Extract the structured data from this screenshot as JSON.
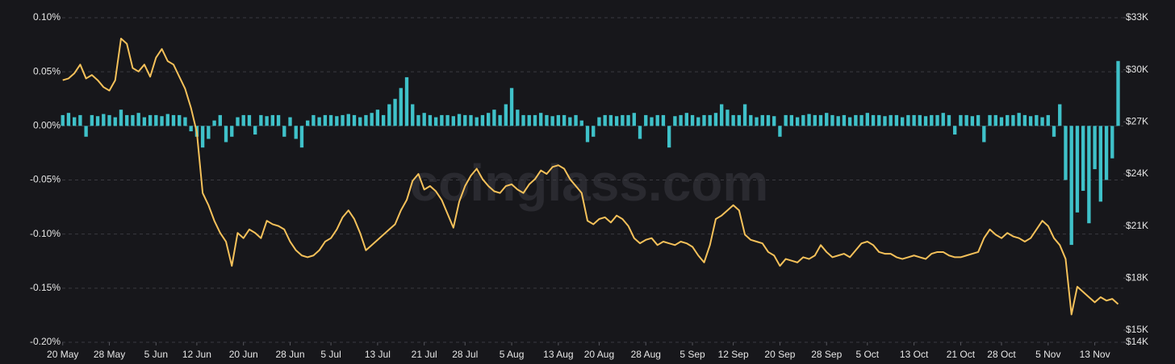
{
  "chart_data": {
    "type": "combo",
    "watermark": "coinglass.com",
    "categories": [
      "20 May",
      null,
      null,
      null,
      null,
      null,
      null,
      null,
      "28 May",
      null,
      null,
      null,
      null,
      null,
      null,
      null,
      "5 Jun",
      null,
      null,
      null,
      null,
      null,
      null,
      "12 Jun",
      null,
      null,
      null,
      null,
      null,
      null,
      null,
      "20 Jun",
      null,
      null,
      null,
      null,
      null,
      null,
      null,
      "28 Jun",
      null,
      null,
      null,
      null,
      null,
      null,
      "5 Jul",
      null,
      null,
      null,
      null,
      null,
      null,
      null,
      "13 Jul",
      null,
      null,
      null,
      null,
      null,
      null,
      null,
      "21 Jul",
      null,
      null,
      null,
      null,
      null,
      null,
      "28 Jul",
      null,
      null,
      null,
      null,
      null,
      null,
      null,
      "5 Aug",
      null,
      null,
      null,
      null,
      null,
      null,
      null,
      "13 Aug",
      null,
      null,
      null,
      null,
      null,
      null,
      "20 Aug",
      null,
      null,
      null,
      null,
      null,
      null,
      null,
      "28 Aug",
      null,
      null,
      null,
      null,
      null,
      null,
      null,
      "5 Sep",
      null,
      null,
      null,
      null,
      null,
      null,
      "12 Sep",
      null,
      null,
      null,
      null,
      null,
      null,
      null,
      "20 Sep",
      null,
      null,
      null,
      null,
      null,
      null,
      null,
      "28 Sep",
      null,
      null,
      null,
      null,
      null,
      null,
      "5 Oct",
      null,
      null,
      null,
      null,
      null,
      null,
      null,
      "13 Oct",
      null,
      null,
      null,
      null,
      null,
      null,
      null,
      "21 Oct",
      null,
      null,
      null,
      null,
      null,
      null,
      "28 Oct",
      null,
      null,
      null,
      null,
      null,
      null,
      null,
      "5 Nov",
      null,
      null,
      null,
      null,
      null,
      null,
      null,
      "13 Nov",
      null,
      null,
      null,
      null
    ],
    "series": [
      {
        "type": "bar",
        "color": "#3fc1c9",
        "values": [
          0.01,
          0.012,
          0.008,
          0.01,
          -0.01,
          0.01,
          0.009,
          0.011,
          0.01,
          0.008,
          0.015,
          0.01,
          0.01,
          0.012,
          0.008,
          0.01,
          0.01,
          0.009,
          0.011,
          0.01,
          0.01,
          0.008,
          -0.005,
          -0.01,
          -0.02,
          -0.012,
          0.005,
          0.01,
          -0.015,
          -0.01,
          0.008,
          0.01,
          0.01,
          -0.008,
          0.01,
          0.009,
          0.01,
          0.01,
          -0.01,
          0.008,
          -0.012,
          -0.02,
          0.005,
          0.01,
          0.008,
          0.01,
          0.01,
          0.009,
          0.01,
          0.011,
          0.01,
          0.008,
          0.01,
          0.012,
          0.015,
          0.01,
          0.02,
          0.025,
          0.035,
          0.045,
          0.02,
          0.01,
          0.012,
          0.01,
          0.008,
          0.01,
          0.01,
          0.009,
          0.011,
          0.01,
          0.01,
          0.008,
          0.01,
          0.012,
          0.015,
          0.01,
          0.02,
          0.035,
          0.015,
          0.01,
          0.01,
          0.01,
          0.012,
          0.01,
          0.009,
          0.01,
          0.01,
          0.008,
          0.01,
          0.005,
          -0.015,
          -0.01,
          0.008,
          0.01,
          0.01,
          0.009,
          0.01,
          0.01,
          0.012,
          -0.012,
          0.01,
          0.008,
          0.01,
          0.01,
          -0.02,
          0.009,
          0.01,
          0.012,
          0.01,
          0.008,
          0.01,
          0.01,
          0.012,
          0.02,
          0.015,
          0.01,
          0.01,
          0.02,
          0.01,
          0.008,
          0.01,
          0.01,
          0.009,
          -0.01,
          0.01,
          0.01,
          0.008,
          0.01,
          0.011,
          0.01,
          0.01,
          0.012,
          0.01,
          0.009,
          0.01,
          0.008,
          0.01,
          0.01,
          0.012,
          0.01,
          0.01,
          0.009,
          0.01,
          0.01,
          0.008,
          0.01,
          0.01,
          0.01,
          0.009,
          0.01,
          0.01,
          0.012,
          0.01,
          -0.008,
          0.01,
          0.01,
          0.009,
          0.01,
          -0.015,
          0.01,
          0.01,
          0.008,
          0.01,
          0.01,
          0.012,
          0.01,
          0.009,
          0.01,
          0.008,
          0.01,
          -0.01,
          0.02,
          -0.05,
          -0.11,
          -0.08,
          -0.06,
          -0.09,
          -0.04,
          -0.07,
          -0.05,
          -0.03,
          0.06
        ]
      },
      {
        "type": "line",
        "axis": "y2",
        "color": "#f5c15a",
        "values": [
          29400,
          29500,
          29800,
          30300,
          29500,
          29700,
          29400,
          29000,
          28800,
          29400,
          31800,
          31500,
          30100,
          29900,
          30300,
          29600,
          30700,
          31200,
          30500,
          30300,
          29600,
          28900,
          27800,
          26400,
          22900,
          22200,
          21300,
          20600,
          20100,
          18700,
          20600,
          20300,
          20800,
          20600,
          20300,
          21300,
          21100,
          21000,
          20800,
          20100,
          19600,
          19300,
          19200,
          19300,
          19600,
          20100,
          20300,
          20800,
          21500,
          21900,
          21400,
          20600,
          19600,
          19900,
          20200,
          20500,
          20800,
          21100,
          21900,
          22500,
          23600,
          24000,
          23100,
          23300,
          23000,
          22500,
          21700,
          20900,
          22400,
          23300,
          23900,
          24300,
          23700,
          23300,
          23000,
          22900,
          23300,
          23400,
          23100,
          22900,
          23400,
          23700,
          24200,
          24000,
          24400,
          24500,
          24300,
          23700,
          23300,
          22900,
          21300,
          21100,
          21400,
          21500,
          21200,
          21600,
          21400,
          21000,
          20300,
          20000,
          20200,
          20300,
          19900,
          20100,
          20000,
          19900,
          20100,
          20000,
          19800,
          19300,
          18900,
          19900,
          21400,
          21600,
          21900,
          22200,
          21900,
          20500,
          20200,
          20100,
          20000,
          19500,
          19300,
          18700,
          19100,
          19000,
          18900,
          19200,
          19100,
          19300,
          19900,
          19500,
          19200,
          19300,
          19400,
          19200,
          19600,
          20000,
          20100,
          19900,
          19500,
          19400,
          19400,
          19200,
          19100,
          19200,
          19300,
          19200,
          19100,
          19400,
          19500,
          19500,
          19300,
          19200,
          19200,
          19300,
          19400,
          19500,
          20300,
          20800,
          20500,
          20300,
          20600,
          20400,
          20300,
          20100,
          20300,
          20800,
          21300,
          21000,
          20300,
          19900,
          19100,
          15900,
          17500,
          17200,
          16900,
          16600,
          16900,
          16700,
          16800,
          16500
        ]
      }
    ],
    "ylim": [
      -0.2,
      0.1
    ],
    "yticks": [
      {
        "value": 0.1,
        "label": "0.10%"
      },
      {
        "value": 0.05,
        "label": "0.05%"
      },
      {
        "value": 0,
        "label": "0.00%"
      },
      {
        "value": -0.05,
        "label": "-0.05%"
      },
      {
        "value": -0.1,
        "label": "-0.10%"
      },
      {
        "value": -0.15,
        "label": "-0.15%"
      },
      {
        "value": -0.2,
        "label": "-0.20%"
      }
    ],
    "y2lim": [
      14300,
      33000
    ],
    "y2ticks": [
      {
        "value": 14300,
        "label": "$14K"
      },
      {
        "value": 15000,
        "label": "$15K"
      },
      {
        "value": 18000,
        "label": "$18K"
      },
      {
        "value": 21000,
        "label": "$21K"
      },
      {
        "value": 24000,
        "label": "$24K"
      },
      {
        "value": 27000,
        "label": "$27K"
      },
      {
        "value": 30000,
        "label": "$30K"
      },
      {
        "value": 33000,
        "label": "$33K"
      }
    ],
    "grid": true
  }
}
